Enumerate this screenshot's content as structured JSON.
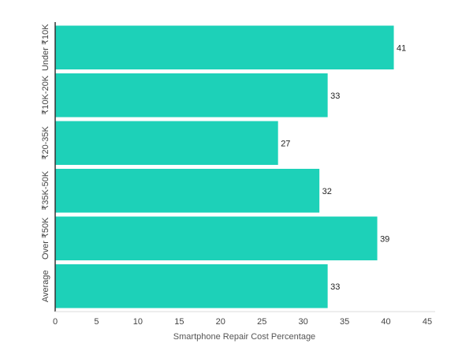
{
  "chart_data": {
    "type": "bar",
    "orientation": "horizontal",
    "categories": [
      "Under ₹10K",
      "₹10K-20K",
      "₹20-35K",
      "₹35K-50K",
      "Over ₹50K",
      "Average"
    ],
    "values": [
      41,
      33,
      27,
      32,
      39,
      33
    ],
    "data_labels": [
      "41",
      "33",
      "27",
      "32",
      "39",
      "33"
    ],
    "xlabel": "Smartphone Repair Cost Percentage",
    "ylabel": "",
    "xlim": [
      0,
      45
    ],
    "xticks": [
      "0",
      "5",
      "10",
      "15",
      "20",
      "25",
      "30",
      "35",
      "40",
      "45"
    ],
    "grid": false,
    "legend": "none",
    "colors": {
      "bar": "#1dd1b8",
      "bar_stroke": "#ffffff",
      "axis": "#333333",
      "text": "#444444"
    }
  }
}
